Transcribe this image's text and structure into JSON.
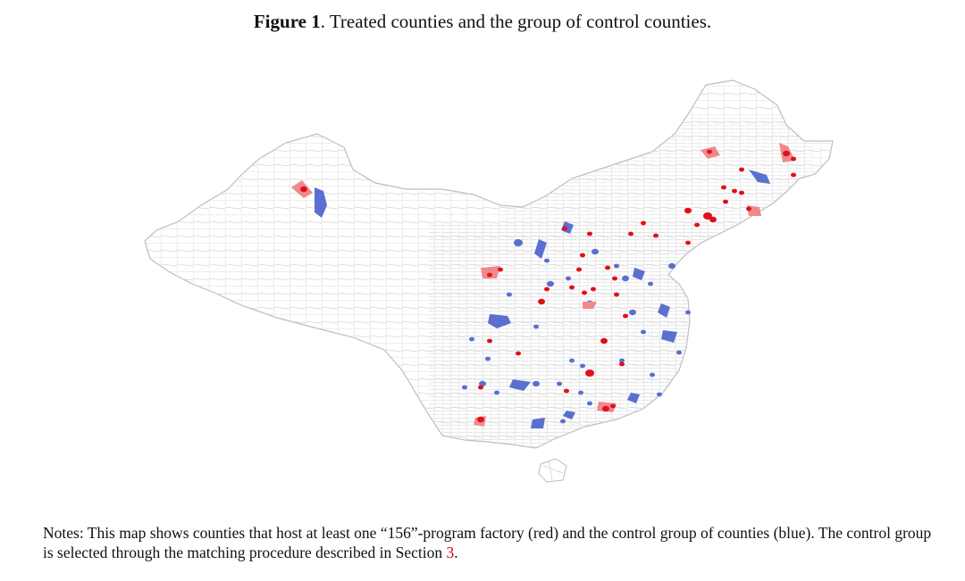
{
  "figure": {
    "label": "Figure 1",
    "sep": ".",
    "title": "Treated counties and the group of control counties."
  },
  "notes": {
    "text": "Notes: This map shows counties that host at least one “156”-program factory (red) and the control group of counties (blue). The control group is selected through the matching procedure described in Section ",
    "ref": "3",
    "end": "."
  },
  "legend_colors": {
    "treated": "#e0101a",
    "treated_area": "#f08a8a",
    "control": "#5a6fd0",
    "boundary": "#cfcfcf"
  }
}
